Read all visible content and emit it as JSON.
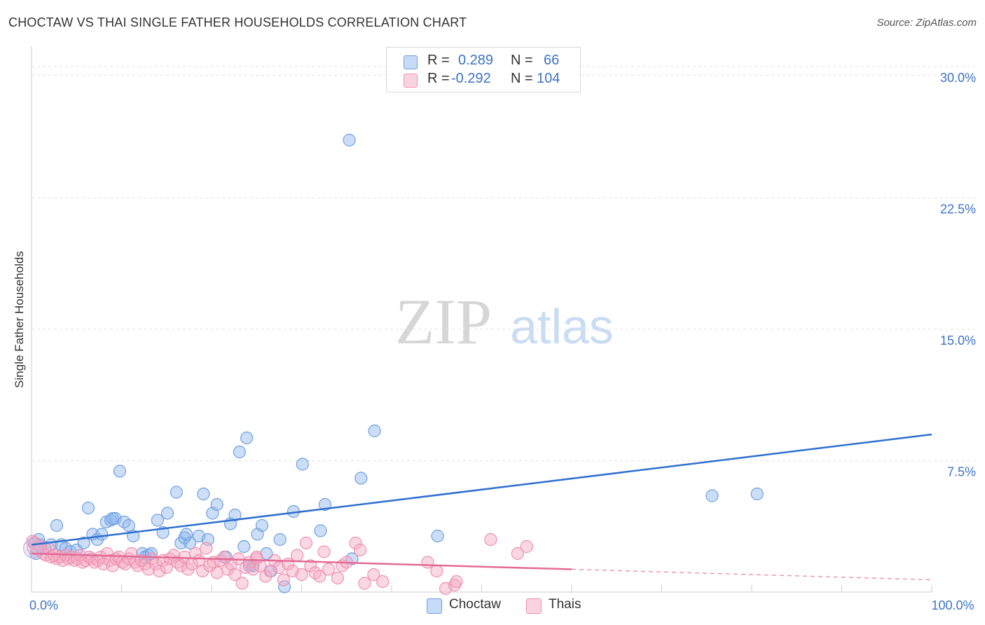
{
  "title": "CHOCTAW VS THAI SINGLE FATHER HOUSEHOLDS CORRELATION CHART",
  "source": "Source: ZipAtlas.com",
  "watermark": {
    "zip": "ZIP",
    "atlas": "atlas"
  },
  "legend": {
    "rows": [
      {
        "r_label": "R =",
        "r_value": "0.289",
        "n_label": "N =",
        "n_value": "66",
        "color": "#8fb6ee"
      },
      {
        "r_label": "R =",
        "r_value": "-0.292",
        "n_label": "N =",
        "n_value": "104",
        "color": "#f5a8c2"
      }
    ]
  },
  "bottom_legend": [
    {
      "label": "Choctaw",
      "color": "#8fb6ee"
    },
    {
      "label": "Thais",
      "color": "#f5a8c2"
    }
  ],
  "chart_data": {
    "type": "scatter",
    "title": "CHOCTAW VS THAI SINGLE FATHER HOUSEHOLDS CORRELATION CHART",
    "xlabel": "",
    "ylabel": "Single Father Households",
    "xlim": [
      0,
      100
    ],
    "ylim": [
      0,
      31
    ],
    "x_tick_labels": [
      {
        "value": 0,
        "label": "0.0%"
      },
      {
        "value": 100,
        "label": "100.0%"
      }
    ],
    "y_tick_labels": [
      {
        "value": 7.5,
        "label": "7.5%"
      },
      {
        "value": 15.0,
        "label": "15.0%"
      },
      {
        "value": 22.5,
        "label": "22.5%"
      },
      {
        "value": 30.0,
        "label": "30.0%"
      }
    ],
    "grid": true,
    "series": [
      {
        "name": "Choctaw",
        "color": "#8fb6ee",
        "line_color": "#2f6fd0",
        "trend": {
          "x": [
            0,
            100
          ],
          "y": [
            2.7,
            9.0
          ],
          "dashed_from": null
        },
        "points": [
          [
            0.3,
            2.8
          ],
          [
            0.5,
            2.2
          ],
          [
            1.0,
            2.7
          ],
          [
            1.5,
            2.5
          ],
          [
            2.2,
            2.7
          ],
          [
            2.8,
            3.8
          ],
          [
            3.3,
            2.7
          ],
          [
            3.8,
            2.5
          ],
          [
            4.3,
            2.3
          ],
          [
            5.0,
            2.4
          ],
          [
            5.8,
            2.8
          ],
          [
            6.3,
            4.8
          ],
          [
            6.8,
            3.3
          ],
          [
            7.3,
            3.0
          ],
          [
            7.8,
            3.3
          ],
          [
            8.3,
            4.0
          ],
          [
            8.8,
            4.1
          ],
          [
            9.3,
            4.2
          ],
          [
            9.8,
            6.9
          ],
          [
            10.3,
            4.0
          ],
          [
            10.8,
            3.8
          ],
          [
            11.3,
            3.2
          ],
          [
            12.3,
            2.2
          ],
          [
            12.6,
            2.0
          ],
          [
            13.0,
            2.1
          ],
          [
            13.3,
            2.2
          ],
          [
            14.0,
            4.1
          ],
          [
            14.6,
            3.4
          ],
          [
            15.1,
            4.5
          ],
          [
            16.1,
            5.7
          ],
          [
            16.6,
            2.8
          ],
          [
            17.0,
            3.1
          ],
          [
            17.6,
            2.8
          ],
          [
            18.6,
            3.2
          ],
          [
            19.1,
            5.6
          ],
          [
            19.6,
            3.0
          ],
          [
            20.1,
            4.5
          ],
          [
            20.6,
            5.0
          ],
          [
            21.6,
            2.0
          ],
          [
            22.1,
            3.9
          ],
          [
            22.6,
            4.4
          ],
          [
            23.1,
            8.0
          ],
          [
            23.6,
            2.6
          ],
          [
            23.9,
            8.8
          ],
          [
            24.6,
            1.5
          ],
          [
            25.1,
            3.3
          ],
          [
            25.6,
            3.8
          ],
          [
            26.1,
            2.2
          ],
          [
            26.6,
            1.2
          ],
          [
            27.6,
            3.0
          ],
          [
            28.1,
            0.3
          ],
          [
            29.1,
            4.6
          ],
          [
            30.1,
            7.3
          ],
          [
            32.1,
            3.5
          ],
          [
            32.6,
            5.0
          ],
          [
            35.3,
            25.8
          ],
          [
            35.6,
            1.9
          ],
          [
            36.6,
            6.5
          ],
          [
            38.1,
            9.2
          ],
          [
            45.1,
            3.2
          ],
          [
            75.6,
            5.5
          ],
          [
            80.6,
            5.6
          ],
          [
            0.8,
            3.0
          ],
          [
            9.0,
            4.2
          ],
          [
            17.2,
            3.3
          ],
          [
            24.2,
            1.5
          ]
        ]
      },
      {
        "name": "Thais",
        "color": "#f5a8c2",
        "line_color": "#e26b95",
        "trend": {
          "x": [
            0,
            100
          ],
          "y": [
            2.2,
            0.7
          ],
          "dashed_from": 60
        },
        "points": [
          [
            0.2,
            2.5
          ],
          [
            0.4,
            2.8
          ],
          [
            0.7,
            2.4
          ],
          [
            1.0,
            2.6
          ],
          [
            1.3,
            2.2
          ],
          [
            1.6,
            2.1
          ],
          [
            1.9,
            2.5
          ],
          [
            2.2,
            2.0
          ],
          [
            2.5,
            2.1
          ],
          [
            2.8,
            1.9
          ],
          [
            3.1,
            2.0
          ],
          [
            3.5,
            1.8
          ],
          [
            3.8,
            2.1
          ],
          [
            4.1,
            1.9
          ],
          [
            4.4,
            2.0
          ],
          [
            4.8,
            1.8
          ],
          [
            5.1,
            1.9
          ],
          [
            5.4,
            2.1
          ],
          [
            5.7,
            1.7
          ],
          [
            6.0,
            1.8
          ],
          [
            6.4,
            2.0
          ],
          [
            6.7,
            1.9
          ],
          [
            7.0,
            1.7
          ],
          [
            7.4,
            1.8
          ],
          [
            7.7,
            2.0
          ],
          [
            8.0,
            1.6
          ],
          [
            8.4,
            2.2
          ],
          [
            8.7,
            1.8
          ],
          [
            9.0,
            1.5
          ],
          [
            9.4,
            1.9
          ],
          [
            9.7,
            2.0
          ],
          [
            10.1,
            1.7
          ],
          [
            10.4,
            1.6
          ],
          [
            10.8,
            1.9
          ],
          [
            11.1,
            2.2
          ],
          [
            11.5,
            1.7
          ],
          [
            11.8,
            1.5
          ],
          [
            12.2,
            1.8
          ],
          [
            12.6,
            1.6
          ],
          [
            13.0,
            1.3
          ],
          [
            13.4,
            1.9
          ],
          [
            13.8,
            1.6
          ],
          [
            14.2,
            1.2
          ],
          [
            14.6,
            1.8
          ],
          [
            15.0,
            1.4
          ],
          [
            15.4,
            1.9
          ],
          [
            15.8,
            2.1
          ],
          [
            16.2,
            1.7
          ],
          [
            16.6,
            1.5
          ],
          [
            17.0,
            2.0
          ],
          [
            17.4,
            1.3
          ],
          [
            17.8,
            1.6
          ],
          [
            18.2,
            2.2
          ],
          [
            18.6,
            1.8
          ],
          [
            19.0,
            1.2
          ],
          [
            19.4,
            2.5
          ],
          [
            19.8,
            1.5
          ],
          [
            20.2,
            1.7
          ],
          [
            20.6,
            1.1
          ],
          [
            21.0,
            1.8
          ],
          [
            21.4,
            2.0
          ],
          [
            21.8,
            1.3
          ],
          [
            22.2,
            1.6
          ],
          [
            22.6,
            1.0
          ],
          [
            23.0,
            1.9
          ],
          [
            23.4,
            0.5
          ],
          [
            23.8,
            1.4
          ],
          [
            24.2,
            1.7
          ],
          [
            24.6,
            1.3
          ],
          [
            25.0,
            1.9
          ],
          [
            25.4,
            1.5
          ],
          [
            26.0,
            0.9
          ],
          [
            26.5,
            1.2
          ],
          [
            27.0,
            1.8
          ],
          [
            27.5,
            1.4
          ],
          [
            28.0,
            0.7
          ],
          [
            28.5,
            1.6
          ],
          [
            29.0,
            1.2
          ],
          [
            29.5,
            2.1
          ],
          [
            30.0,
            1.0
          ],
          [
            30.5,
            2.8
          ],
          [
            31.0,
            1.5
          ],
          [
            31.5,
            1.1
          ],
          [
            32.0,
            0.9
          ],
          [
            32.5,
            2.3
          ],
          [
            33.0,
            1.3
          ],
          [
            34.0,
            0.8
          ],
          [
            34.5,
            1.5
          ],
          [
            35.0,
            1.7
          ],
          [
            36.0,
            2.8
          ],
          [
            36.5,
            2.4
          ],
          [
            37.0,
            0.5
          ],
          [
            38.0,
            1.0
          ],
          [
            39.0,
            0.6
          ],
          [
            44.0,
            1.7
          ],
          [
            45.0,
            1.2
          ],
          [
            46.0,
            0.2
          ],
          [
            47.0,
            0.4
          ],
          [
            47.2,
            0.6
          ],
          [
            51.0,
            3.0
          ],
          [
            54.0,
            2.2
          ],
          [
            55.0,
            2.6
          ],
          [
            0.1,
            2.9
          ],
          [
            25.0,
            2.0
          ]
        ]
      }
    ]
  }
}
